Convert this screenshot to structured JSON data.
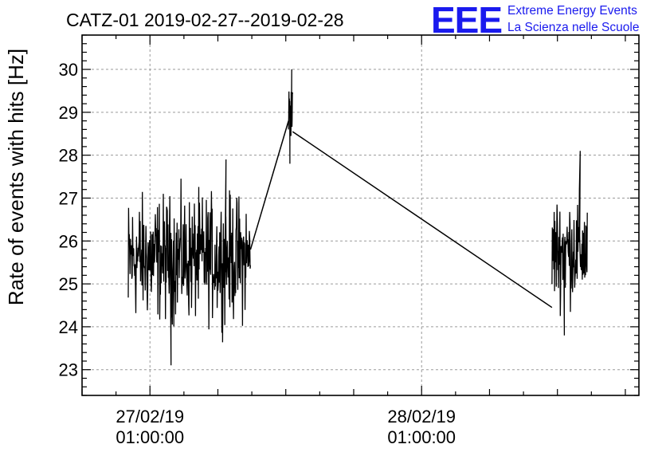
{
  "chart_data": {
    "type": "line",
    "title": "CATZ-01 2019-02-27--2019-02-28",
    "ylabel": "Rate of events with hits [Hz]",
    "xlabel": "",
    "ylim": [
      22.4,
      30.8
    ],
    "yticks": [
      23,
      24,
      25,
      26,
      27,
      28,
      29,
      30
    ],
    "xlim_hours": [
      -2.5,
      18
    ],
    "xticks": [
      {
        "hour": 0,
        "label": "27/02/19\n01:00:00"
      },
      {
        "hour": 10,
        "label": "28/02/19\n01:00:00"
      }
    ],
    "grid": true,
    "series": [
      {
        "color": "#000000",
        "segments": [
          {
            "start_hour": -0.8,
            "end_hour": 3.7,
            "mean": 25.6,
            "min": 23.1,
            "max": 27.9
          },
          {
            "start_hour": 5.1,
            "end_hour": 5.25,
            "mean": 29.0,
            "min": 27.8,
            "max": 30.0
          },
          {
            "start_hour": 14.8,
            "end_hour": 16.1,
            "mean": 25.8,
            "min": 23.8,
            "max": 28.1
          }
        ],
        "connectors": [
          {
            "from": [
              3.7,
              25.8
            ],
            "to": [
              5.1,
              28.8
            ]
          },
          {
            "from": [
              5.25,
              28.55
            ],
            "to": [
              14.8,
              24.45
            ]
          }
        ]
      }
    ]
  },
  "logo": {
    "letters": "EEE",
    "line1": "Extreme Energy Events",
    "line2": "La Scienza nelle Scuole"
  }
}
